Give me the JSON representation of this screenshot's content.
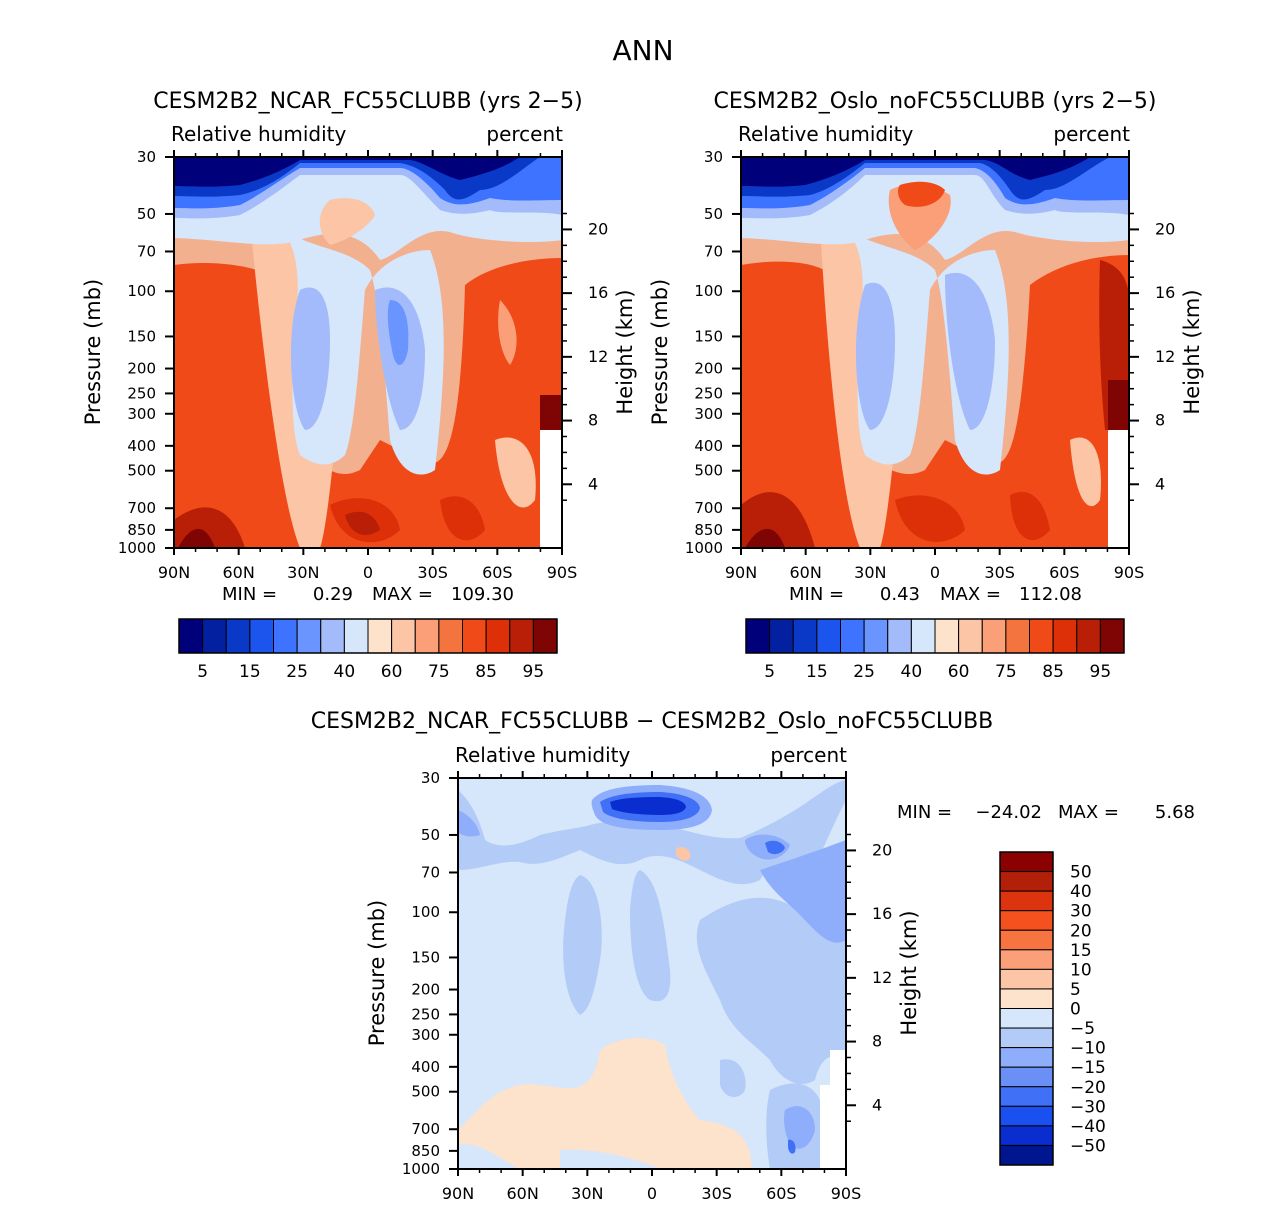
{
  "page_title": "ANN",
  "chart_data": [
    {
      "type": "heatmap",
      "id": "left",
      "title": "CESM2B2_NCAR_FC55CLUBB (yrs 2-5)",
      "variable": "Relative humidity",
      "units": "percent",
      "ylabel": "Pressure (mb)",
      "ylabel2": "Height (km)",
      "x_ticks": [
        "90N",
        "60N",
        "30N",
        "0",
        "30S",
        "60S",
        "90S"
      ],
      "y_ticks": [
        30,
        50,
        70,
        100,
        150,
        200,
        250,
        300,
        400,
        500,
        700,
        850,
        1000
      ],
      "y2_ticks": [
        20,
        16,
        12,
        8,
        4
      ],
      "stats": {
        "min_label": "MIN =",
        "min": "0.29",
        "max_label": "MAX =",
        "max": "109.30"
      },
      "colorbar_labels": [
        "5",
        "15",
        "25",
        "40",
        "60",
        "75",
        "85",
        "95"
      ],
      "colors": [
        "#00007a",
        "#0320a0",
        "#0a39c8",
        "#1c55ee",
        "#3d73ff",
        "#6a95ff",
        "#a3bbfa",
        "#d6e6fb",
        "#fde2cc",
        "#fcc5a5",
        "#fb9f79",
        "#f3743f",
        "#f04a18",
        "#dd3008",
        "#b81f06",
        "#7f0404"
      ]
    },
    {
      "type": "heatmap",
      "id": "right",
      "title": "CESM2B2_Oslo_noFC55CLUBB (yrs 2-5)",
      "variable": "Relative humidity",
      "units": "percent",
      "ylabel": "Pressure (mb)",
      "ylabel2": "Height (km)",
      "x_ticks": [
        "90N",
        "60N",
        "30N",
        "0",
        "30S",
        "60S",
        "90S"
      ],
      "y_ticks": [
        30,
        50,
        70,
        100,
        150,
        200,
        250,
        300,
        400,
        500,
        700,
        850,
        1000
      ],
      "y2_ticks": [
        20,
        16,
        12,
        8,
        4
      ],
      "stats": {
        "min_label": "MIN =",
        "min": "0.43",
        "max_label": "MAX =",
        "max": "112.08"
      },
      "colorbar_labels": [
        "5",
        "15",
        "25",
        "40",
        "60",
        "75",
        "85",
        "95"
      ],
      "colors": [
        "#00007a",
        "#0320a0",
        "#0a39c8",
        "#1c55ee",
        "#3d73ff",
        "#6a95ff",
        "#a3bbfa",
        "#d6e6fb",
        "#fde2cc",
        "#fcc5a5",
        "#fb9f79",
        "#f3743f",
        "#f04a18",
        "#dd3008",
        "#b81f06",
        "#7f0404"
      ]
    },
    {
      "type": "heatmap",
      "id": "diff",
      "title": "CESM2B2_NCAR_FC55CLUBB - CESM2B2_Oslo_noFC55CLUBB",
      "variable": "Relative humidity",
      "units": "percent",
      "ylabel": "Pressure (mb)",
      "ylabel2": "Height (km)",
      "x_ticks": [
        "90N",
        "60N",
        "30N",
        "0",
        "30S",
        "60S",
        "90S"
      ],
      "y_ticks": [
        30,
        50,
        70,
        100,
        150,
        200,
        250,
        300,
        400,
        500,
        700,
        850,
        1000
      ],
      "y2_ticks": [
        20,
        16,
        12,
        8,
        4
      ],
      "stats": {
        "min_label": "MIN =",
        "min": "-24.02",
        "max_label": "MAX =",
        "max": "5.68"
      },
      "colorbar_labels": [
        "50",
        "40",
        "30",
        "20",
        "15",
        "10",
        "5",
        "0",
        "-5",
        "-10",
        "-15",
        "-20",
        "-30",
        "-40",
        "-50"
      ],
      "colors": [
        "#8b0000",
        "#b3200a",
        "#dd3410",
        "#f4511e",
        "#f7733f",
        "#fb9f79",
        "#fcc5a5",
        "#fde2cc",
        "#d6e6fb",
        "#b3cbf7",
        "#8eaefc",
        "#6a8ff5",
        "#3f70f5",
        "#1a4ff0",
        "#0a2dd0",
        "#00168f"
      ]
    }
  ]
}
